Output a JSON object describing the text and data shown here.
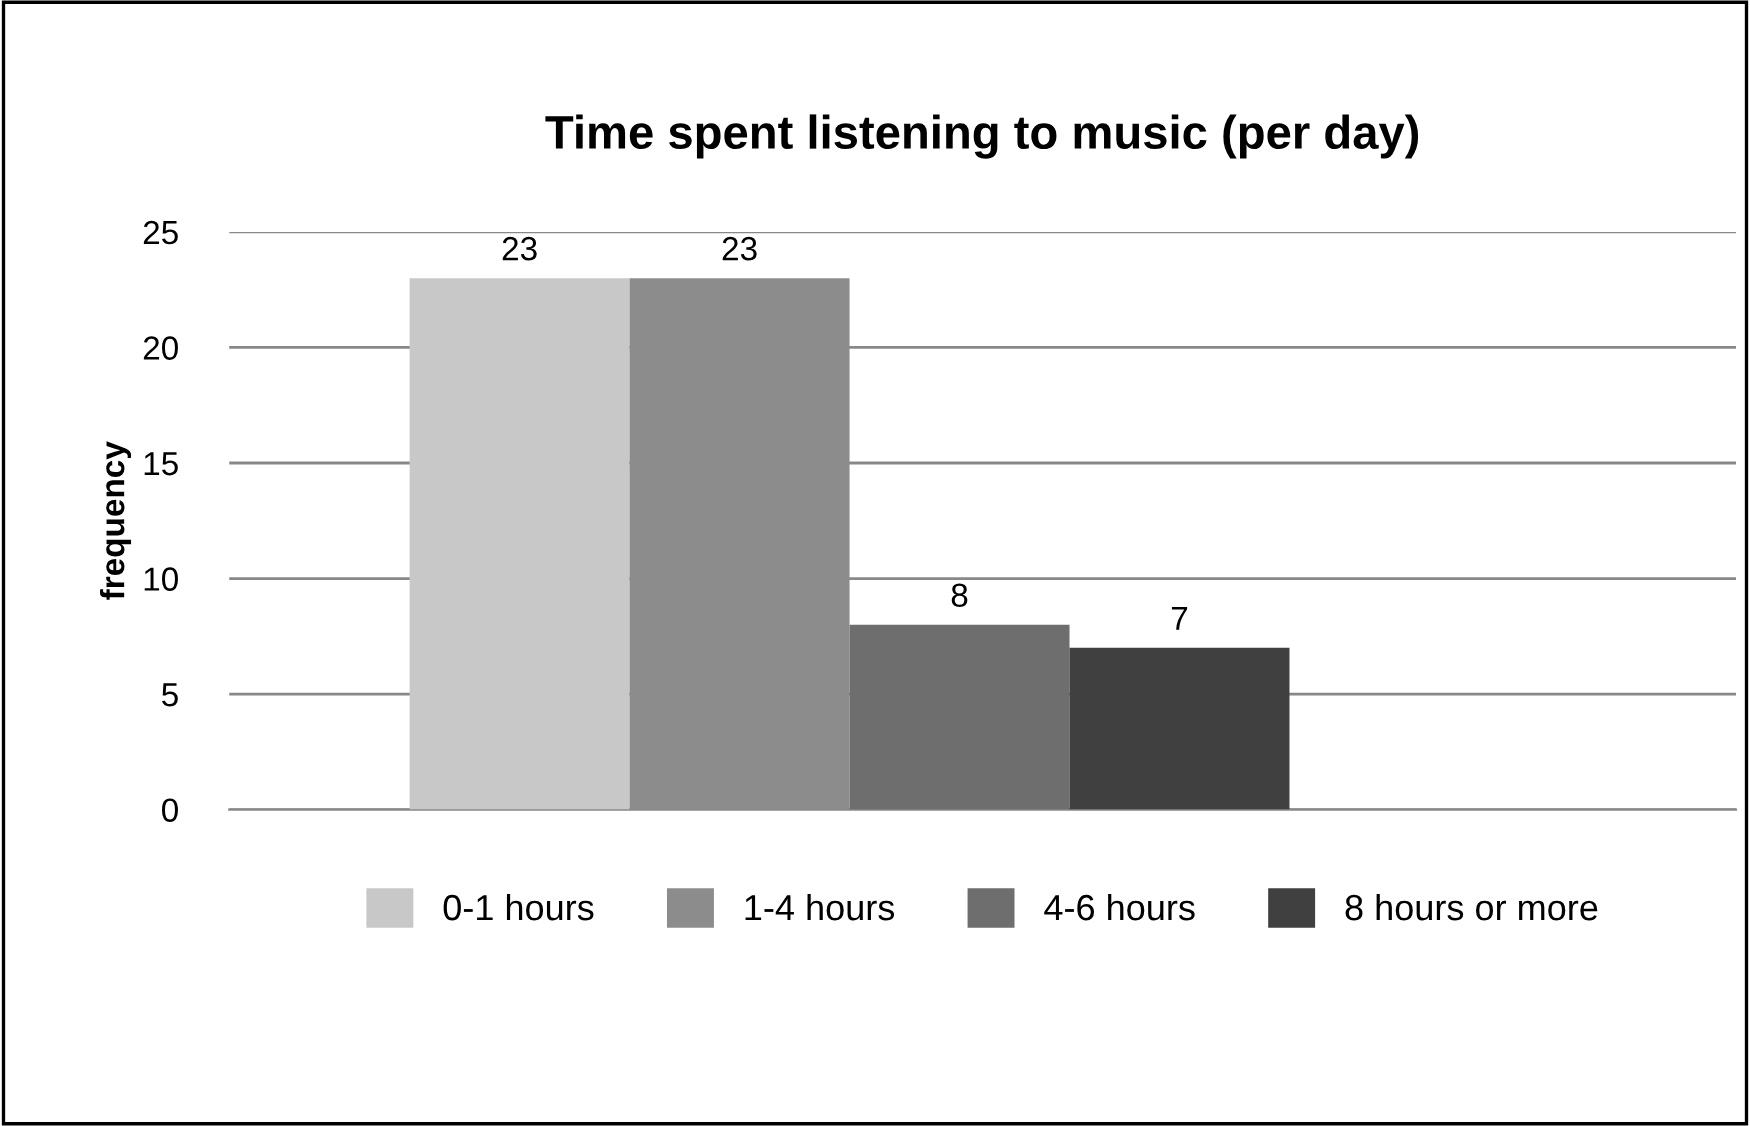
{
  "chart_data": {
    "type": "bar",
    "title": "Time spent listening to music (per day)",
    "ylabel": "frequency",
    "categories": [
      null
    ],
    "series": [
      {
        "name": "0-1 hours",
        "color": "#c8c8c8",
        "values": [
          23
        ]
      },
      {
        "name": "1-4 hours",
        "color": "#8c8c8c",
        "values": [
          23
        ]
      },
      {
        "name": "4-6 hours",
        "color": "#6e6e6e",
        "values": [
          8
        ]
      },
      {
        "name": "8 hours or more",
        "color": "#404040",
        "values": [
          7
        ]
      }
    ],
    "ylim": [
      0,
      25
    ],
    "yticks": [
      0,
      5,
      10,
      15,
      20,
      25
    ],
    "grid": "y",
    "legend": "bottom",
    "data_labels": true
  }
}
